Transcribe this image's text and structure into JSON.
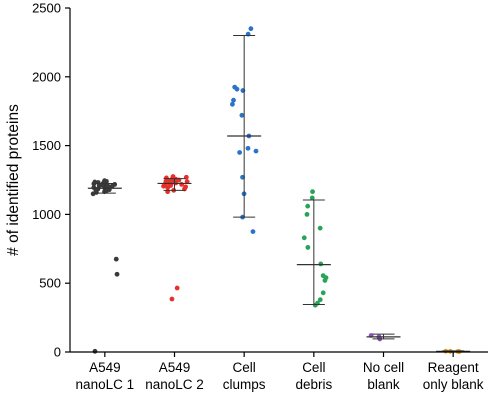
{
  "chart_data": {
    "type": "scatter",
    "title": "",
    "xlabel": "",
    "ylabel": "# of identified proteins",
    "ylim": [
      0,
      2500
    ],
    "yticks": [
      0,
      500,
      1000,
      1500,
      2000,
      2500
    ],
    "ytick_labels": [
      "0",
      "500",
      "1000",
      "1500",
      "2000",
      "2500"
    ],
    "grid": false,
    "categories": [
      {
        "line1": "A549",
        "line2": "nanoLC 1"
      },
      {
        "line1": "A549",
        "line2": "nanoLC 2"
      },
      {
        "line1": "Cell",
        "line2": "clumps"
      },
      {
        "line1": "Cell",
        "line2": "debris"
      },
      {
        "line1": "No cell",
        "line2": "blank"
      },
      {
        "line1": "Reagent",
        "line2": "only blank"
      }
    ],
    "series": [
      {
        "color": "#3a3a3a",
        "mean": 1190,
        "sd_low": 1155,
        "sd_high": 1225,
        "values": [
          1245,
          1240,
          1235,
          1232,
          1228,
          1225,
          1222,
          1218,
          1215,
          1212,
          1208,
          1205,
          1200,
          1195,
          1190,
          1185,
          1180,
          1175,
          1170,
          1165,
          1160,
          1150,
          675,
          565,
          5
        ]
      },
      {
        "color": "#e8302a",
        "mean": 1225,
        "sd_low": 1175,
        "sd_high": 1260,
        "values": [
          1275,
          1270,
          1265,
          1260,
          1255,
          1250,
          1245,
          1240,
          1238,
          1235,
          1232,
          1228,
          1225,
          1222,
          1218,
          1215,
          1210,
          1205,
          1200,
          1195,
          1185,
          1175,
          1165,
          465,
          385
        ]
      },
      {
        "color": "#2b73c8",
        "mean": 1570,
        "sd_low": 980,
        "sd_high": 2300,
        "values": [
          2350,
          2310,
          1925,
          1910,
          1900,
          1830,
          1800,
          1720,
          1570,
          1480,
          1460,
          1450,
          1270,
          1150,
          980,
          875
        ]
      },
      {
        "color": "#2aa35a",
        "mean": 635,
        "sd_low": 345,
        "sd_high": 1105,
        "values": [
          1165,
          1120,
          1060,
          1000,
          900,
          830,
          760,
          640,
          555,
          540,
          520,
          430,
          380,
          355,
          340
        ]
      },
      {
        "color": "#8a4fc0",
        "mean": 110,
        "sd_low": 95,
        "sd_high": 130,
        "values": [
          120,
          110,
          95
        ]
      },
      {
        "color": "#e0a020",
        "mean": 5,
        "sd_low": 3,
        "sd_high": 8,
        "values": [
          6,
          5,
          4,
          3
        ]
      }
    ]
  }
}
